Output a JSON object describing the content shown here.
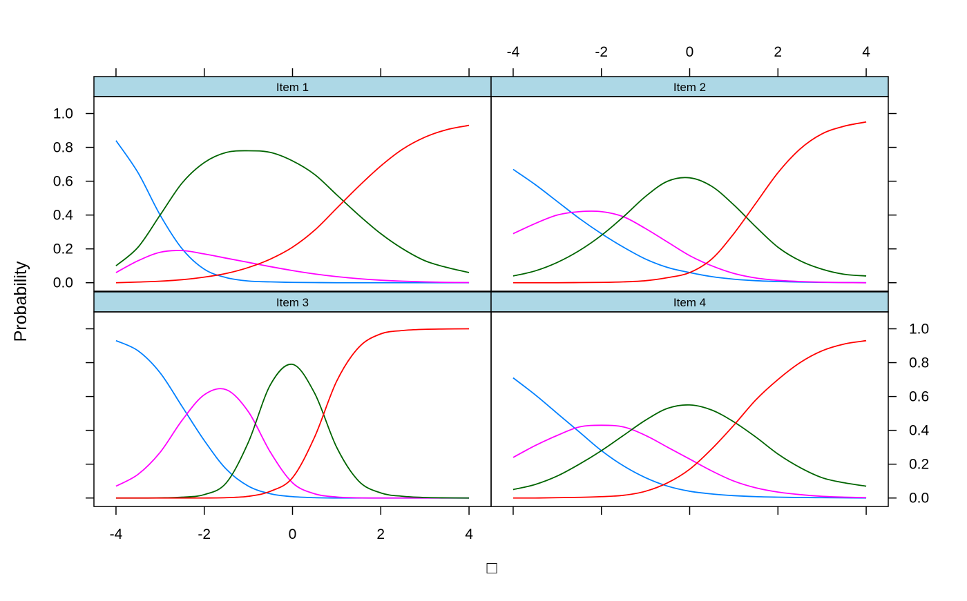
{
  "chart_data": {
    "type": "line",
    "layout": "2x2 lattice panels",
    "ylabel": "Probability",
    "xlabel": "□",
    "xlim": [
      -4.5,
      4.5
    ],
    "ylim": [
      -0.05,
      1.1
    ],
    "x_ticks": [
      -4,
      -2,
      0,
      2,
      4
    ],
    "x_tick_labels": [
      "-4",
      "-2",
      "0",
      "2",
      "4"
    ],
    "y_ticks": [
      0.0,
      0.2,
      0.4,
      0.6,
      0.8,
      1.0
    ],
    "y_tick_labels": [
      "0.0",
      "0.2",
      "0.4",
      "0.6",
      "0.8",
      "1.0"
    ],
    "strip_color": "#add8e6",
    "series_colors": [
      "#0080ff",
      "#ff00ff",
      "#006400",
      "#ff0000"
    ],
    "x": [
      -4,
      -3.5,
      -3,
      -2.5,
      -2,
      -1.5,
      -1,
      -0.5,
      0,
      0.5,
      1,
      1.5,
      2,
      2.5,
      3,
      3.5,
      4
    ],
    "panels": [
      {
        "title": "Item 1",
        "series": [
          {
            "color": "#0080ff",
            "values": [
              0.84,
              0.65,
              0.4,
              0.2,
              0.08,
              0.03,
              0.01,
              0.005,
              0.002,
              0.001,
              0,
              0,
              0,
              0,
              0,
              0,
              0
            ]
          },
          {
            "color": "#ff00ff",
            "values": [
              0.06,
              0.13,
              0.18,
              0.19,
              0.17,
              0.145,
              0.12,
              0.095,
              0.072,
              0.052,
              0.036,
              0.024,
              0.015,
              0.009,
              0.005,
              0.002,
              0.001
            ]
          },
          {
            "color": "#006400",
            "values": [
              0.1,
              0.21,
              0.4,
              0.59,
              0.71,
              0.77,
              0.78,
              0.77,
              0.72,
              0.64,
              0.52,
              0.4,
              0.29,
              0.2,
              0.13,
              0.09,
              0.06
            ]
          },
          {
            "color": "#ff0000",
            "values": [
              0.0,
              0.004,
              0.009,
              0.018,
              0.033,
              0.055,
              0.09,
              0.14,
              0.21,
              0.31,
              0.44,
              0.57,
              0.69,
              0.79,
              0.86,
              0.905,
              0.93
            ]
          }
        ]
      },
      {
        "title": "Item 2",
        "series": [
          {
            "color": "#0080ff",
            "values": [
              0.67,
              0.58,
              0.48,
              0.38,
              0.29,
              0.21,
              0.14,
              0.09,
              0.06,
              0.036,
              0.021,
              0.012,
              0.007,
              0.004,
              0.002,
              0.001,
              0.0
            ]
          },
          {
            "color": "#ff00ff",
            "values": [
              0.29,
              0.35,
              0.4,
              0.42,
              0.42,
              0.39,
              0.32,
              0.24,
              0.16,
              0.1,
              0.055,
              0.028,
              0.014,
              0.007,
              0.003,
              0.001,
              0.0
            ]
          },
          {
            "color": "#006400",
            "values": [
              0.04,
              0.07,
              0.12,
              0.19,
              0.28,
              0.39,
              0.51,
              0.6,
              0.62,
              0.57,
              0.46,
              0.33,
              0.21,
              0.13,
              0.08,
              0.05,
              0.04
            ]
          },
          {
            "color": "#ff0000",
            "values": [
              0.0,
              0.0,
              0.0,
              0.001,
              0.002,
              0.005,
              0.012,
              0.03,
              0.06,
              0.14,
              0.29,
              0.47,
              0.65,
              0.79,
              0.88,
              0.925,
              0.95
            ]
          }
        ]
      },
      {
        "title": "Item 3",
        "series": [
          {
            "color": "#0080ff",
            "values": [
              0.93,
              0.87,
              0.74,
              0.54,
              0.34,
              0.17,
              0.07,
              0.025,
              0.008,
              0.002,
              0,
              0,
              0,
              0,
              0,
              0,
              0
            ]
          },
          {
            "color": "#ff00ff",
            "values": [
              0.07,
              0.14,
              0.27,
              0.46,
              0.61,
              0.64,
              0.51,
              0.27,
              0.09,
              0.025,
              0.006,
              0.001,
              0,
              0,
              0,
              0,
              0
            ]
          },
          {
            "color": "#006400",
            "values": [
              0.0,
              0.0,
              0.001,
              0.005,
              0.02,
              0.09,
              0.33,
              0.67,
              0.79,
              0.62,
              0.3,
              0.1,
              0.03,
              0.01,
              0.003,
              0.001,
              0.0
            ]
          },
          {
            "color": "#ff0000",
            "values": [
              0.0,
              0.0,
              0.0,
              0.0,
              0.0,
              0.002,
              0.01,
              0.04,
              0.12,
              0.36,
              0.69,
              0.89,
              0.97,
              0.99,
              0.997,
              0.999,
              1.0
            ]
          }
        ]
      },
      {
        "title": "Item 4",
        "series": [
          {
            "color": "#0080ff",
            "values": [
              0.71,
              0.61,
              0.5,
              0.39,
              0.28,
              0.19,
              0.12,
              0.07,
              0.04,
              0.024,
              0.014,
              0.008,
              0.005,
              0.003,
              0.002,
              0.001,
              0.0
            ]
          },
          {
            "color": "#ff00ff",
            "values": [
              0.24,
              0.31,
              0.37,
              0.42,
              0.43,
              0.42,
              0.37,
              0.3,
              0.23,
              0.16,
              0.1,
              0.06,
              0.035,
              0.02,
              0.01,
              0.005,
              0.002
            ]
          },
          {
            "color": "#006400",
            "values": [
              0.05,
              0.08,
              0.13,
              0.2,
              0.28,
              0.37,
              0.46,
              0.53,
              0.55,
              0.52,
              0.45,
              0.36,
              0.26,
              0.18,
              0.12,
              0.09,
              0.07
            ]
          },
          {
            "color": "#ff0000",
            "values": [
              0.0,
              0.0,
              0.002,
              0.004,
              0.008,
              0.016,
              0.04,
              0.09,
              0.17,
              0.29,
              0.43,
              0.58,
              0.7,
              0.8,
              0.87,
              0.91,
              0.93
            ]
          }
        ]
      }
    ]
  }
}
